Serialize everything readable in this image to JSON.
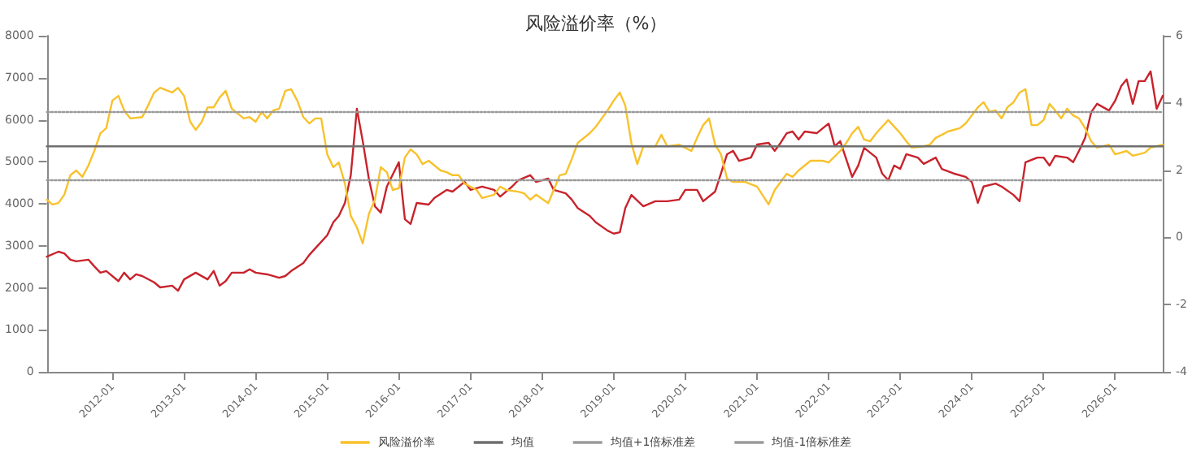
{
  "chart_data": {
    "type": "line",
    "title": "风险溢价率（%）",
    "legend": "bottom",
    "grid": false,
    "marker": "none",
    "xlim": [
      "2011-02",
      "2026-09"
    ],
    "xticks": [
      "2012-01",
      "2013-01",
      "2014-01",
      "2015-01",
      "2016-01",
      "2017-01",
      "2018-01",
      "2019-01",
      "2020-01",
      "2021-01",
      "2022-01",
      "2023-01",
      "2024-01",
      "2025-01",
      "2026-01"
    ],
    "ylim": [
      0,
      8000
    ],
    "yticks": [
      0,
      1000,
      2000,
      3000,
      4000,
      5000,
      6000,
      7000,
      8000
    ],
    "y2lim": [
      -4,
      6
    ],
    "y2ticks": [
      -4,
      -2,
      0,
      2,
      4,
      6
    ],
    "series": [
      {
        "color": "#c8232c",
        "x": [
          "2011-02",
          "2011-04",
          "2011-05",
          "2011-06",
          "2011-07",
          "2011-09",
          "2011-10",
          "2011-11",
          "2011-12",
          "2012-02",
          "2012-03",
          "2012-04",
          "2012-05",
          "2012-06",
          "2012-08",
          "2012-09",
          "2012-11",
          "2012-12",
          "2013-01",
          "2013-03",
          "2013-05",
          "2013-06",
          "2013-07",
          "2013-08",
          "2013-09",
          "2013-11",
          "2013-12",
          "2014-01",
          "2014-03",
          "2014-05",
          "2014-06",
          "2014-07",
          "2014-09",
          "2014-10",
          "2014-11",
          "2015-01",
          "2015-02",
          "2015-03",
          "2015-04",
          "2015-05",
          "2015-06",
          "2015-07",
          "2015-08",
          "2015-09",
          "2015-10",
          "2015-11",
          "2016-01",
          "2016-02",
          "2016-03",
          "2016-04",
          "2016-06",
          "2016-07",
          "2016-09",
          "2016-10",
          "2016-12",
          "2017-01",
          "2017-03",
          "2017-05",
          "2017-06",
          "2017-08",
          "2017-09",
          "2017-11",
          "2017-12",
          "2018-02",
          "2018-03",
          "2018-05",
          "2018-06",
          "2018-07",
          "2018-09",
          "2018-10",
          "2018-12",
          "2019-01",
          "2019-02",
          "2019-03",
          "2019-04",
          "2019-06",
          "2019-08",
          "2019-10",
          "2019-12",
          "2020-01",
          "2020-03",
          "2020-04",
          "2020-06",
          "2020-07",
          "2020-08",
          "2020-09",
          "2020-10",
          "2020-12",
          "2021-01",
          "2021-03",
          "2021-04",
          "2021-05",
          "2021-06",
          "2021-07",
          "2021-08",
          "2021-09",
          "2021-11",
          "2022-01",
          "2022-02",
          "2022-03",
          "2022-05",
          "2022-06",
          "2022-07",
          "2022-09",
          "2022-10",
          "2022-11",
          "2022-12",
          "2023-01",
          "2023-02",
          "2023-04",
          "2023-05",
          "2023-07",
          "2023-08",
          "2023-10",
          "2023-12",
          "2024-01",
          "2024-02",
          "2024-03",
          "2024-05",
          "2024-06",
          "2024-08",
          "2024-09",
          "2024-10",
          "2024-12",
          "2025-01",
          "2025-02",
          "2025-03",
          "2025-05",
          "2025-06",
          "2025-07",
          "2025-08",
          "2025-09",
          "2025-10",
          "2025-12",
          "2026-01",
          "2026-02",
          "2026-03",
          "2026-04",
          "2026-05",
          "2026-06",
          "2026-07",
          "2026-08",
          "2026-09"
        ],
        "values": [
          2740,
          2860,
          2820,
          2670,
          2630,
          2670,
          2510,
          2360,
          2400,
          2160,
          2360,
          2200,
          2320,
          2280,
          2130,
          2010,
          2050,
          1930,
          2200,
          2360,
          2200,
          2400,
          2050,
          2160,
          2360,
          2360,
          2440,
          2360,
          2320,
          2240,
          2280,
          2400,
          2590,
          2780,
          2940,
          3250,
          3560,
          3710,
          4020,
          4680,
          6260,
          5490,
          4600,
          3940,
          3790,
          4410,
          4990,
          3630,
          3520,
          4020,
          3980,
          4140,
          4330,
          4290,
          4520,
          4330,
          4410,
          4330,
          4170,
          4410,
          4560,
          4680,
          4520,
          4600,
          4330,
          4250,
          4100,
          3900,
          3710,
          3560,
          3360,
          3290,
          3320,
          3900,
          4210,
          3940,
          4060,
          4060,
          4100,
          4330,
          4330,
          4060,
          4290,
          4720,
          5180,
          5260,
          5020,
          5100,
          5410,
          5450,
          5260,
          5450,
          5680,
          5720,
          5530,
          5720,
          5680,
          5910,
          5370,
          5490,
          4640,
          4910,
          5330,
          5100,
          4720,
          4560,
          4910,
          4830,
          5180,
          5100,
          4950,
          5100,
          4830,
          4720,
          4640,
          4520,
          4020,
          4410,
          4480,
          4410,
          4210,
          4060,
          4990,
          5100,
          5100,
          4910,
          5140,
          5100,
          4990,
          5260,
          5570,
          6180,
          6380,
          6220,
          6450,
          6800,
          6960,
          6380,
          6920,
          6920,
          7150,
          6260,
          6570
        ]
      },
      {
        "name": "风险溢价率",
        "color": "#f8c22c",
        "axis": "y2",
        "x": [
          "2011-02",
          "2011-03",
          "2011-04",
          "2011-05",
          "2011-06",
          "2011-07",
          "2011-08",
          "2011-09",
          "2011-10",
          "2011-11",
          "2011-12",
          "2012-01",
          "2012-02",
          "2012-03",
          "2012-04",
          "2012-06",
          "2012-07",
          "2012-08",
          "2012-09",
          "2012-11",
          "2012-12",
          "2013-01",
          "2013-02",
          "2013-03",
          "2013-04",
          "2013-05",
          "2013-06",
          "2013-07",
          "2013-08",
          "2013-09",
          "2013-11",
          "2013-12",
          "2014-01",
          "2014-02",
          "2014-03",
          "2014-04",
          "2014-05",
          "2014-06",
          "2014-07",
          "2014-08",
          "2014-09",
          "2014-10",
          "2014-11",
          "2014-12",
          "2015-01",
          "2015-02",
          "2015-03",
          "2015-04",
          "2015-05",
          "2015-06",
          "2015-07",
          "2015-08",
          "2015-09",
          "2015-10",
          "2015-11",
          "2015-12",
          "2016-01",
          "2016-02",
          "2016-03",
          "2016-04",
          "2016-05",
          "2016-06",
          "2016-08",
          "2016-09",
          "2016-10",
          "2016-11",
          "2016-12",
          "2017-02",
          "2017-03",
          "2017-05",
          "2017-06",
          "2017-07",
          "2017-09",
          "2017-10",
          "2017-11",
          "2017-12",
          "2018-02",
          "2018-03",
          "2018-04",
          "2018-05",
          "2018-06",
          "2018-07",
          "2018-09",
          "2018-10",
          "2018-12",
          "2019-01",
          "2019-02",
          "2019-03",
          "2019-04",
          "2019-05",
          "2019-06",
          "2019-08",
          "2019-09",
          "2019-10",
          "2019-12",
          "2020-02",
          "2020-03",
          "2020-04",
          "2020-05",
          "2020-06",
          "2020-07",
          "2020-08",
          "2020-09",
          "2020-11",
          "2021-01",
          "2021-03",
          "2021-04",
          "2021-06",
          "2021-07",
          "2021-08",
          "2021-10",
          "2021-12",
          "2022-01",
          "2022-03",
          "2022-04",
          "2022-05",
          "2022-06",
          "2022-07",
          "2022-08",
          "2022-09",
          "2022-11",
          "2023-01",
          "2023-02",
          "2023-03",
          "2023-05",
          "2023-06",
          "2023-07",
          "2023-08",
          "2023-09",
          "2023-11",
          "2023-12",
          "2024-01",
          "2024-02",
          "2024-03",
          "2024-04",
          "2024-05",
          "2024-06",
          "2024-07",
          "2024-08",
          "2024-09",
          "2024-10",
          "2024-11",
          "2024-12",
          "2025-01",
          "2025-02",
          "2025-03",
          "2025-04",
          "2025-05",
          "2025-06",
          "2025-07",
          "2025-08",
          "2025-09",
          "2025-10",
          "2025-12",
          "2026-01",
          "2026-03",
          "2026-04",
          "2026-06",
          "2026-07",
          "2026-09"
        ],
        "values": [
          1.12,
          0.98,
          1.02,
          1.27,
          1.85,
          1.99,
          1.8,
          2.14,
          2.57,
          3.1,
          3.25,
          4.07,
          4.21,
          3.78,
          3.54,
          3.58,
          3.92,
          4.31,
          4.45,
          4.31,
          4.45,
          4.21,
          3.44,
          3.2,
          3.44,
          3.87,
          3.87,
          4.16,
          4.36,
          3.83,
          3.54,
          3.58,
          3.44,
          3.73,
          3.54,
          3.78,
          3.83,
          4.36,
          4.41,
          4.07,
          3.58,
          3.39,
          3.54,
          3.54,
          2.47,
          2.09,
          2.23,
          1.6,
          0.64,
          0.3,
          -0.18,
          0.69,
          1.12,
          2.09,
          1.94,
          1.41,
          1.46,
          2.38,
          2.62,
          2.47,
          2.18,
          2.28,
          1.99,
          1.94,
          1.85,
          1.85,
          1.6,
          1.41,
          1.17,
          1.27,
          1.51,
          1.41,
          1.36,
          1.31,
          1.12,
          1.27,
          1.02,
          1.41,
          1.85,
          1.89,
          2.33,
          2.81,
          3.1,
          3.29,
          3.78,
          4.07,
          4.31,
          3.92,
          2.81,
          2.18,
          2.71,
          2.71,
          3.05,
          2.71,
          2.76,
          2.57,
          2.96,
          3.34,
          3.54,
          2.76,
          2.47,
          1.75,
          1.65,
          1.65,
          1.51,
          0.98,
          1.41,
          1.89,
          1.8,
          1.99,
          2.28,
          2.28,
          2.23,
          2.57,
          2.81,
          3.1,
          3.29,
          2.91,
          2.86,
          3.1,
          3.49,
          3.1,
          2.86,
          2.67,
          2.71,
          2.76,
          2.96,
          3.05,
          3.15,
          3.25,
          3.39,
          3.63,
          3.87,
          4.02,
          3.73,
          3.78,
          3.54,
          3.87,
          4.02,
          4.31,
          4.41,
          3.34,
          3.34,
          3.49,
          3.97,
          3.78,
          3.54,
          3.83,
          3.63,
          3.54,
          3.25,
          2.86,
          2.67,
          2.76,
          2.47,
          2.57,
          2.43,
          2.52,
          2.67,
          2.76
        ]
      },
      {
        "name": "均值",
        "color": "#6e6e6e",
        "axis": "y2",
        "line_style": "solid",
        "x": [
          "2011-02",
          "2026-09"
        ],
        "values": [
          2.71,
          2.71
        ]
      },
      {
        "name": "均值+1倍标准差",
        "color": "#9a9a9a",
        "axis": "y2",
        "line_style": "dotted",
        "x": [
          "2011-02",
          "2026-09"
        ],
        "values": [
          3.73,
          3.73
        ]
      },
      {
        "name": "均值-1倍标准差",
        "color": "#9a9a9a",
        "axis": "y2",
        "line_style": "dotted",
        "x": [
          "2011-02",
          "2026-09"
        ],
        "values": [
          1.7,
          1.7
        ]
      }
    ]
  }
}
